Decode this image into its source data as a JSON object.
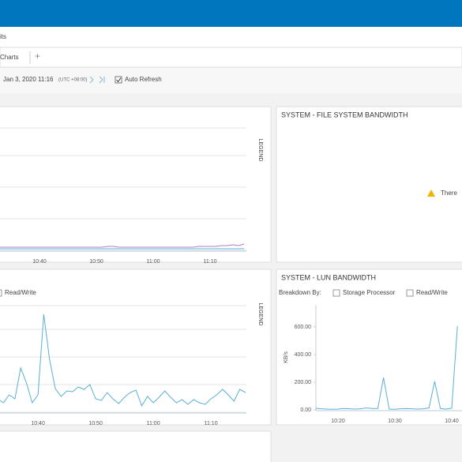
{
  "header": {
    "breadcrumb": "its"
  },
  "tabs": {
    "items": [
      "Charts"
    ],
    "add": "+"
  },
  "toolbar": {
    "date": "Jan 3, 2020 11:16",
    "timezone": "(UTC +08:00)",
    "auto_refresh": "Auto Refresh"
  },
  "panels": {
    "file_system": {
      "title": "SYSTEM - FILE SYSTEM BANDWIDTH",
      "message": "There"
    },
    "left_bottom": {
      "breakdown_options": [
        "Read/Write"
      ]
    },
    "lun": {
      "title": "SYSTEM - LUN BANDWIDTH",
      "breakdown_label": "Breakdown By:",
      "breakdown_options": [
        "Storage Processor",
        "Read/Write"
      ]
    }
  },
  "chart_data": [
    {
      "type": "line",
      "legend_label": "LEGEND",
      "categories": [
        null,
        null,
        null,
        null,
        null,
        null,
        null,
        "10:40",
        null,
        null,
        null,
        null,
        null,
        null,
        null,
        null,
        null,
        "10:50",
        null,
        null,
        null,
        null,
        null,
        null,
        null,
        null,
        null,
        "11:00",
        null,
        null,
        null,
        null,
        null,
        null,
        null,
        null,
        null,
        "11:10",
        null,
        null,
        null,
        null,
        null,
        null
      ],
      "series": [
        {
          "color": "#b07cc6",
          "values": [
            4,
            4,
            4,
            4,
            4,
            4,
            4,
            4,
            4,
            4,
            4,
            4,
            4,
            4,
            4,
            4,
            4,
            4,
            4,
            5,
            5,
            4,
            4,
            4,
            4,
            4,
            4,
            4,
            4,
            4,
            4,
            4,
            4,
            4,
            4,
            5,
            5,
            5,
            5,
            6,
            6,
            7,
            6,
            8
          ]
        },
        {
          "color": "#5aafd6",
          "values": [
            2,
            2,
            2,
            2,
            2,
            2,
            2,
            2,
            2,
            2,
            2,
            2,
            2,
            2,
            2,
            2,
            2,
            2,
            2,
            2,
            2,
            2,
            2,
            2,
            2,
            2,
            2,
            2,
            2,
            2,
            2,
            2,
            2,
            2,
            2,
            2,
            2,
            2,
            2,
            2,
            2,
            2,
            2,
            2
          ]
        }
      ],
      "ylim": [
        0,
        160
      ],
      "grid": true
    },
    {
      "type": "line",
      "legend_label": "LEGEND",
      "categories": [
        null,
        null,
        null,
        null,
        null,
        null,
        null,
        "10:40",
        null,
        null,
        null,
        null,
        null,
        null,
        null,
        null,
        null,
        "10:50",
        null,
        null,
        null,
        null,
        null,
        null,
        null,
        null,
        null,
        "11:00",
        null,
        null,
        null,
        null,
        null,
        null,
        null,
        null,
        null,
        "11:10",
        null,
        null,
        null,
        null,
        null,
        null
      ],
      "series": [
        {
          "color": "#5aafd6",
          "values": [
            17,
            12,
            22,
            17,
            56,
            37,
            12,
            22,
            124,
            67,
            30,
            20,
            27,
            26,
            32,
            29,
            35,
            17,
            15,
            25,
            17,
            11,
            19,
            25,
            28,
            8,
            20,
            12,
            19,
            27,
            19,
            12,
            16,
            10,
            16,
            12,
            10,
            17,
            22,
            29,
            22,
            14,
            29,
            25
          ]
        }
      ],
      "ylim": [
        0,
        140
      ],
      "grid": true
    },
    {
      "type": "line",
      "y_label": "KB/s",
      "categories": [
        null,
        null,
        null,
        null,
        "10:20",
        null,
        null,
        null,
        null,
        null,
        null,
        null,
        null,
        null,
        "10:30",
        null,
        null,
        null,
        null,
        null,
        null,
        null,
        null,
        null,
        "10:40",
        null
      ],
      "series": [
        {
          "color": "#5aafd6",
          "values": [
            12,
            8,
            6,
            4,
            6,
            10,
            8,
            6,
            8,
            14,
            10,
            10,
            234,
            6,
            4,
            8,
            10,
            8,
            6,
            8,
            14,
            206,
            10,
            6,
            12,
            606
          ]
        }
      ],
      "ylim": [
        0,
        760
      ],
      "yticks": [
        {
          "value": 0,
          "label": "0.00"
        },
        {
          "value": 200,
          "label": "200.00"
        },
        {
          "value": 400,
          "label": "400.00"
        },
        {
          "value": 600,
          "label": "600.00"
        }
      ],
      "grid": false
    }
  ]
}
